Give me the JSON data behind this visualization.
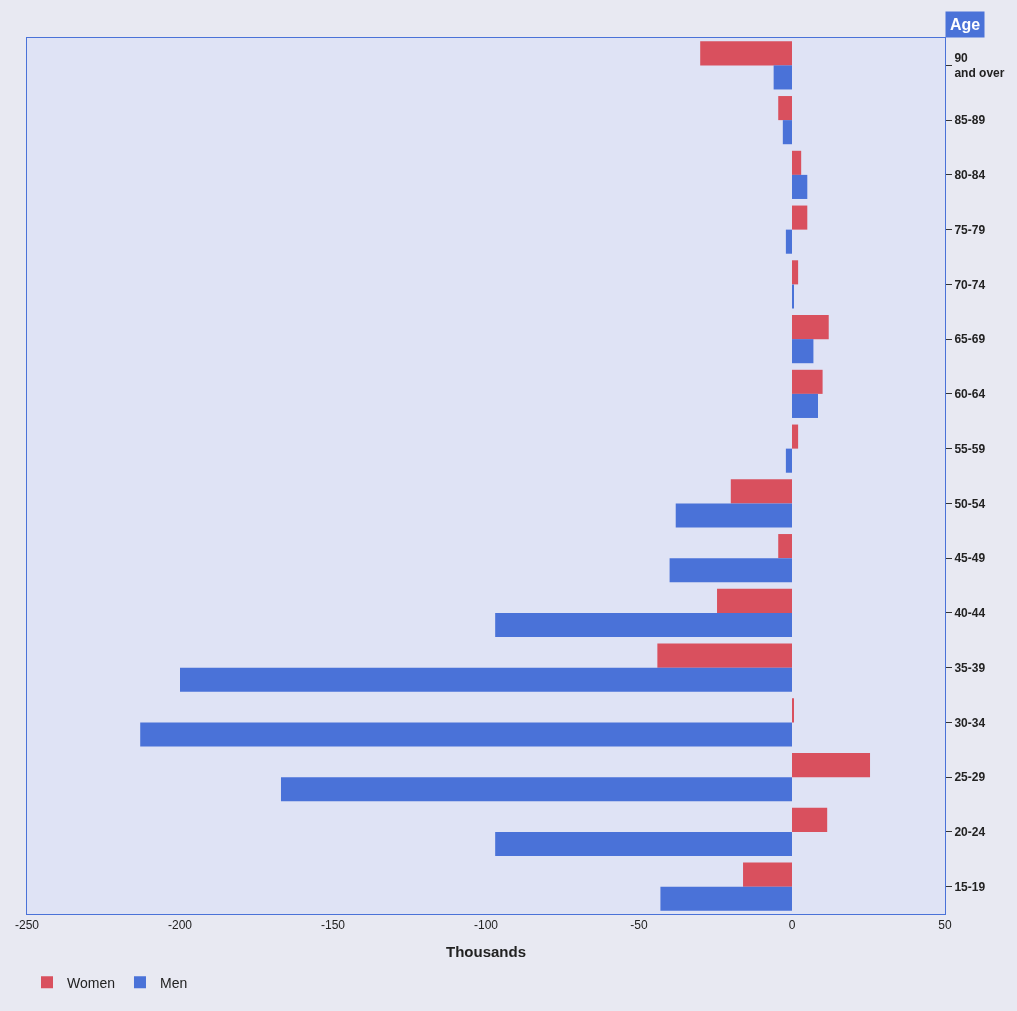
{
  "chart_data": {
    "type": "bar",
    "orientation": "horizontal",
    "xlabel": "Thousands",
    "ylabel": "Age",
    "categories": [
      "90 and over",
      "85-89",
      "80-84",
      "75-79",
      "70-74",
      "65-69",
      "60-64",
      "55-59",
      "50-54",
      "45-49",
      "40-44",
      "35-39",
      "30-34",
      "25-29",
      "20-24",
      "15-19"
    ],
    "series": [
      {
        "name": "Women",
        "color": "#d9505e",
        "values": [
          -30,
          -4.5,
          3,
          5,
          2,
          12,
          10,
          2,
          -20,
          -4.5,
          -24.5,
          -44,
          0.5,
          25.5,
          11.5,
          -16
        ]
      },
      {
        "name": "Men",
        "color": "#4a72d8",
        "values": [
          -6,
          -3,
          5,
          -2,
          0.5,
          7,
          8.5,
          -2,
          -38,
          -40,
          -97,
          -200,
          -213,
          -167,
          -97,
          -43
        ]
      }
    ],
    "xlim": [
      -250,
      50
    ],
    "xticks": [
      -250,
      -200,
      -150,
      -100,
      -50,
      0,
      50
    ],
    "grid": false,
    "legend": "bottom left"
  }
}
